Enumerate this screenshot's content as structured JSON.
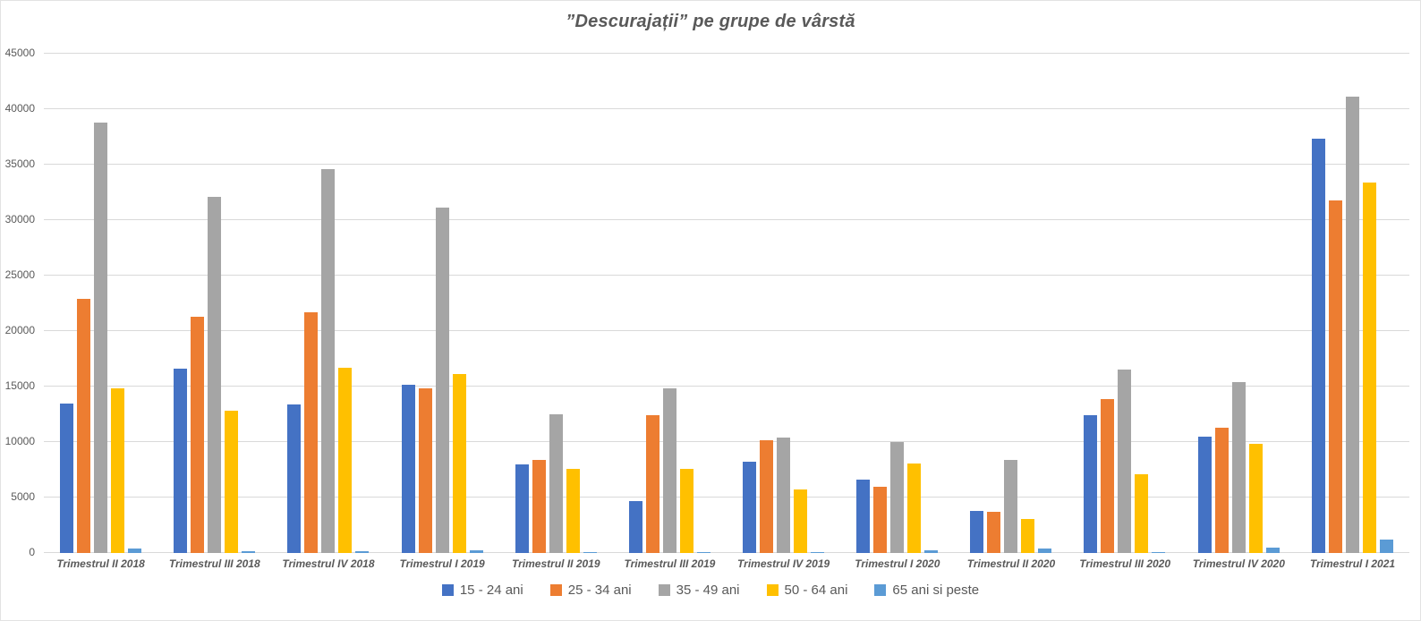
{
  "colors": {
    "grid": "#d9d9d9",
    "axis_text": "#595959",
    "title_text": "#595959",
    "series_blue": "#4472C4",
    "series_orange": "#ED7D31",
    "series_gray": "#A5A5A5",
    "series_yellow": "#FFC000",
    "series_lightblue": "#5B9BD5"
  },
  "chart_data": {
    "type": "bar",
    "title": "”Descurajații” pe grupe de vârstă",
    "xlabel": "",
    "ylabel": "",
    "ylim": [
      0,
      45000
    ],
    "ytick_step": 5000,
    "grid": true,
    "legend_position": "bottom",
    "categories": [
      "Trimestrul II 2018",
      "Trimestrul III 2018",
      "Trimestrul IV 2018",
      "Trimestrul I 2019",
      "Trimestrul II 2019",
      "Trimestrul III 2019",
      "Trimestrul IV 2019",
      "Trimestrul I 2020",
      "Trimestrul II 2020",
      "Trimestrul III 2020",
      "Trimestrul IV 2020",
      "Trimestrul I 2021"
    ],
    "series": [
      {
        "name": "15 - 24 ani",
        "color": "#4472C4",
        "values": [
          13500,
          16600,
          13400,
          15200,
          8000,
          4700,
          8200,
          6600,
          3800,
          12400,
          10500,
          37300
        ]
      },
      {
        "name": "25 - 34 ani",
        "color": "#ED7D31",
        "values": [
          22900,
          21300,
          21700,
          14800,
          8400,
          12400,
          10200,
          6000,
          3700,
          13900,
          11300,
          31800
        ]
      },
      {
        "name": "35 - 49 ani",
        "color": "#A5A5A5",
        "values": [
          38800,
          32100,
          34600,
          31100,
          12500,
          14800,
          10400,
          10000,
          8400,
          16500,
          15400,
          41100
        ]
      },
      {
        "name": "50 - 64 ani",
        "color": "#FFC000",
        "values": [
          14800,
          12800,
          16700,
          16100,
          7600,
          7600,
          5700,
          8100,
          3100,
          7100,
          9800,
          33400
        ]
      },
      {
        "name": "65 ani si peste",
        "color": "#5B9BD5",
        "values": [
          400,
          200,
          150,
          250,
          100,
          100,
          100,
          250,
          400,
          100,
          500,
          1200
        ]
      }
    ]
  }
}
